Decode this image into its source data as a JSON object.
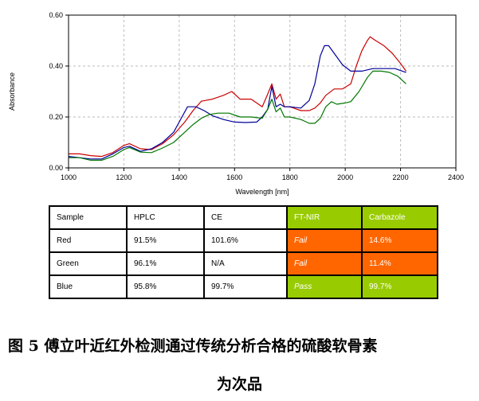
{
  "chart_data": {
    "type": "line",
    "xlabel": "Wavelength [nm]",
    "ylabel": "Absorbance",
    "xlim": [
      1000,
      2400
    ],
    "ylim": [
      0,
      0.6
    ],
    "xticks": [
      "1000",
      "1200",
      "1400",
      "1600",
      "1800",
      "2000",
      "2200",
      "2400"
    ],
    "yticks": [
      "0.00",
      "0.20",
      "0.40",
      "0.60"
    ],
    "grid": true,
    "series": [
      {
        "color": "#cc0000",
        "x": [
          1000,
          1040,
          1080,
          1120,
          1160,
          1200,
          1220,
          1260,
          1300,
          1340,
          1380,
          1420,
          1450,
          1480,
          1520,
          1560,
          1590,
          1620,
          1660,
          1700,
          1720,
          1735,
          1750,
          1765,
          1780,
          1800,
          1840,
          1870,
          1890,
          1910,
          1930,
          1960,
          1990,
          2020,
          2040,
          2060,
          2080,
          2090,
          2110,
          2140,
          2170,
          2200,
          2220
        ],
        "y": [
          0.055,
          0.055,
          0.048,
          0.045,
          0.06,
          0.088,
          0.095,
          0.075,
          0.072,
          0.095,
          0.13,
          0.18,
          0.225,
          0.262,
          0.27,
          0.285,
          0.3,
          0.27,
          0.27,
          0.24,
          0.29,
          0.33,
          0.27,
          0.29,
          0.24,
          0.24,
          0.225,
          0.225,
          0.235,
          0.255,
          0.285,
          0.31,
          0.31,
          0.33,
          0.4,
          0.46,
          0.5,
          0.515,
          0.5,
          0.48,
          0.45,
          0.41,
          0.38
        ]
      },
      {
        "color": "#000099",
        "x": [
          1000,
          1040,
          1080,
          1120,
          1160,
          1200,
          1220,
          1260,
          1300,
          1340,
          1380,
          1410,
          1430,
          1460,
          1490,
          1520,
          1560,
          1600,
          1640,
          1680,
          1700,
          1720,
          1735,
          1750,
          1765,
          1780,
          1800,
          1840,
          1870,
          1890,
          1910,
          1925,
          1940,
          1960,
          1990,
          2020,
          2060,
          2100,
          2140,
          2180,
          2220
        ],
        "y": [
          0.045,
          0.04,
          0.035,
          0.035,
          0.055,
          0.08,
          0.085,
          0.065,
          0.075,
          0.1,
          0.14,
          0.2,
          0.24,
          0.24,
          0.225,
          0.205,
          0.19,
          0.18,
          0.178,
          0.18,
          0.2,
          0.23,
          0.32,
          0.24,
          0.25,
          0.24,
          0.24,
          0.235,
          0.265,
          0.33,
          0.44,
          0.48,
          0.48,
          0.45,
          0.405,
          0.38,
          0.38,
          0.39,
          0.39,
          0.39,
          0.375
        ]
      },
      {
        "color": "#007700",
        "x": [
          1000,
          1040,
          1080,
          1120,
          1160,
          1200,
          1220,
          1260,
          1300,
          1340,
          1380,
          1420,
          1450,
          1480,
          1510,
          1540,
          1580,
          1620,
          1660,
          1700,
          1720,
          1735,
          1750,
          1765,
          1780,
          1800,
          1840,
          1870,
          1890,
          1910,
          1930,
          1950,
          1970,
          2000,
          2020,
          2050,
          2080,
          2100,
          2130,
          2160,
          2190,
          2220
        ],
        "y": [
          0.04,
          0.04,
          0.03,
          0.03,
          0.045,
          0.072,
          0.08,
          0.062,
          0.06,
          0.078,
          0.1,
          0.14,
          0.17,
          0.195,
          0.21,
          0.215,
          0.215,
          0.2,
          0.2,
          0.195,
          0.23,
          0.27,
          0.22,
          0.235,
          0.2,
          0.2,
          0.19,
          0.175,
          0.175,
          0.195,
          0.24,
          0.26,
          0.25,
          0.255,
          0.26,
          0.3,
          0.355,
          0.38,
          0.38,
          0.375,
          0.36,
          0.33
        ]
      }
    ]
  },
  "table": {
    "header": [
      "Sample",
      "HPLC",
      "CE",
      "FT-NIR",
      "Carbazole"
    ],
    "rows": [
      [
        "Red",
        "91.5%",
        "101.6%",
        "Fail",
        "14.6%"
      ],
      [
        "Green",
        "96.1%",
        "N/A",
        "Fail",
        "11.4%"
      ],
      [
        "Blue",
        "95.8%",
        "99.7%",
        "Pass",
        "99.7%"
      ]
    ],
    "colors": {
      "green": "#99cc00",
      "orange": "#ff6600"
    }
  },
  "caption": {
    "line1": "图 5 傅立叶近红外检测通过传统分析合格的硫酸软骨素",
    "line2": "为次品"
  }
}
